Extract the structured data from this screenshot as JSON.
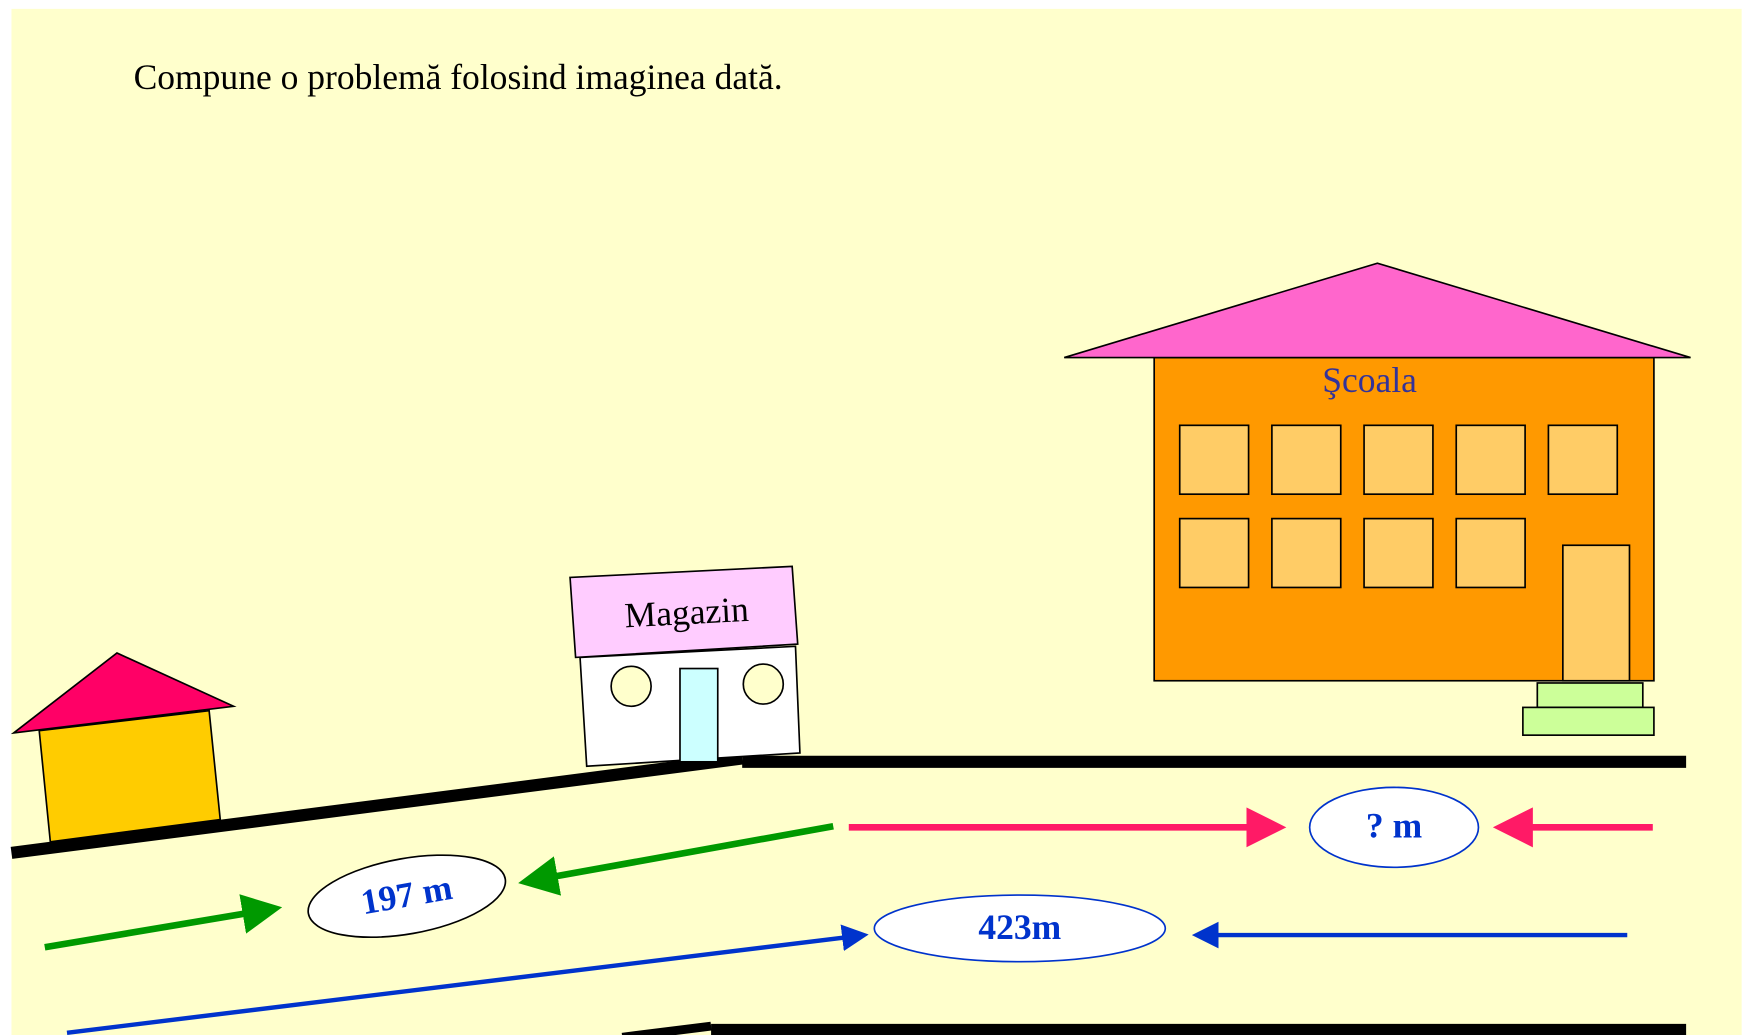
{
  "instruction": "Compune o problemă folosind imaginea dată.",
  "buildings": {
    "shop": "Magazin",
    "school": "Şcoala"
  },
  "distances": {
    "home_to_shop": "197 m",
    "shop_to_school": "? m",
    "home_to_school": "423m"
  }
}
